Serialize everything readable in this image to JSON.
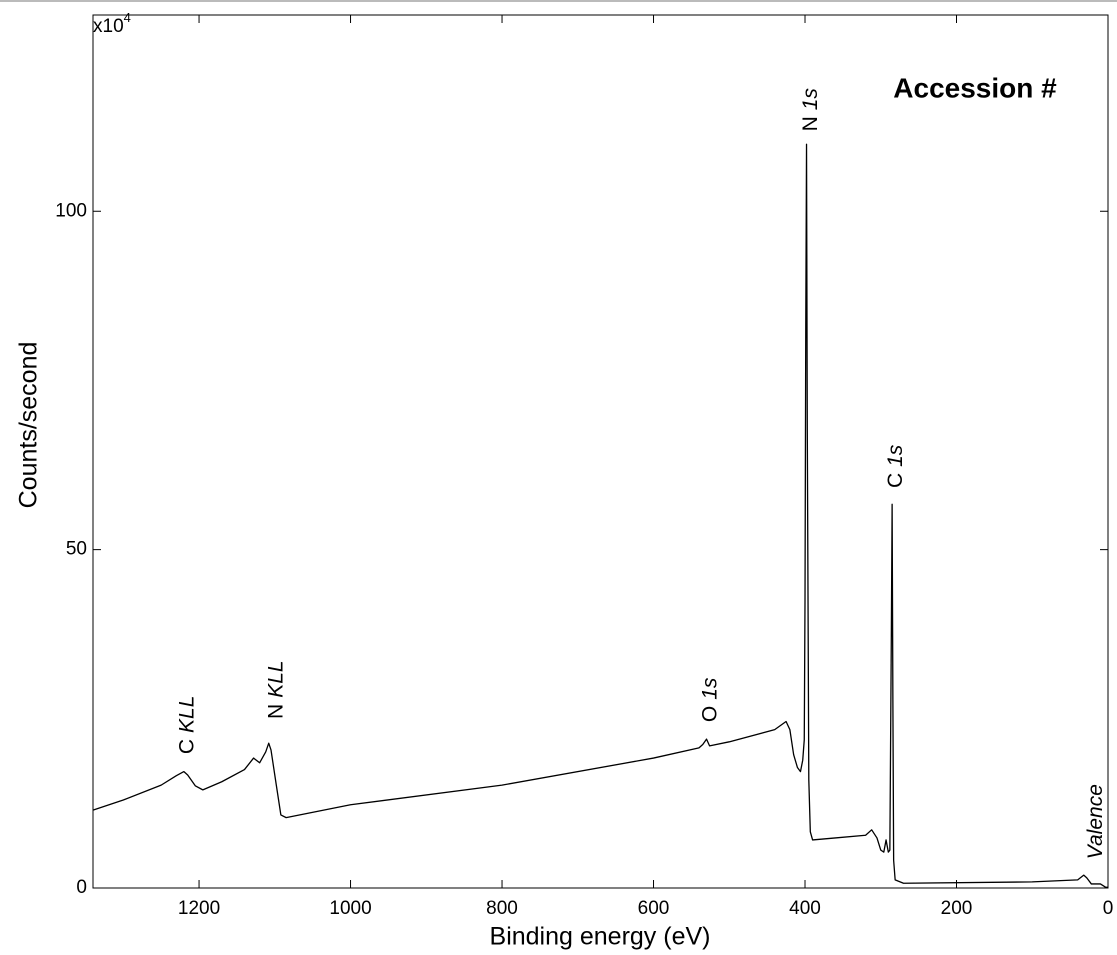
{
  "chart_data": {
    "type": "line",
    "title": "Accession #",
    "x_label": "Binding energy (eV)",
    "y_label": "Counts/second",
    "y_multiplier": {
      "base": "x10",
      "exponent": "4"
    },
    "xlim": [
      1340,
      0
    ],
    "ylim": [
      0,
      129
    ],
    "xticks": [
      1200,
      1000,
      800,
      600,
      400,
      200,
      0
    ],
    "yticks": [
      0,
      50,
      100
    ],
    "grid": false,
    "color": "#000000",
    "x": [
      1340,
      1300,
      1250,
      1230,
      1220,
      1215,
      1205,
      1195,
      1170,
      1140,
      1128,
      1120,
      1112,
      1108,
      1105,
      1098,
      1092,
      1085,
      1000,
      800,
      600,
      540,
      535,
      530,
      526,
      500,
      440,
      425,
      420,
      415,
      410,
      406,
      403,
      401,
      400,
      399,
      398,
      397,
      395,
      393,
      390,
      360,
      320,
      312,
      305,
      300,
      296,
      293,
      290,
      288,
      286,
      285,
      284,
      283,
      281,
      270,
      100,
      40,
      32,
      28,
      22,
      10,
      3,
      0
    ],
    "values": [
      11.5,
      13.0,
      15.2,
      16.6,
      17.2,
      16.7,
      15.1,
      14.5,
      15.7,
      17.5,
      19.2,
      18.5,
      20.1,
      21.4,
      20.4,
      15.2,
      10.8,
      10.4,
      12.3,
      15.2,
      19.2,
      20.7,
      21.2,
      22.0,
      21.0,
      21.6,
      23.4,
      24.6,
      23.4,
      19.7,
      17.8,
      17.2,
      18.9,
      21.9,
      42.6,
      83.3,
      109.9,
      67.8,
      16.0,
      8.3,
      7.1,
      7.4,
      7.8,
      8.6,
      7.4,
      5.6,
      5.3,
      7.1,
      5.3,
      5.6,
      38.2,
      56.7,
      27.8,
      4.1,
      1.2,
      0.7,
      0.9,
      1.2,
      1.9,
      1.5,
      0.6,
      0.6,
      0.1,
      0.1
    ],
    "annotations": [
      {
        "label": "C",
        "italic_label": "KLL",
        "x": 1215,
        "y": 24.1
      },
      {
        "label": "N",
        "italic_label": "KLL",
        "x": 1098,
        "y": 29.3
      },
      {
        "label": "O",
        "italic_label": "1s",
        "x": 525,
        "y": 27.8
      },
      {
        "label": "N",
        "italic_label": "1s",
        "x": 392,
        "y": 115
      },
      {
        "label": "C",
        "italic_label": "1s",
        "x": 280,
        "y": 62.3
      },
      {
        "italic_label": "Valence",
        "x": 16,
        "y": 9.8
      }
    ]
  }
}
